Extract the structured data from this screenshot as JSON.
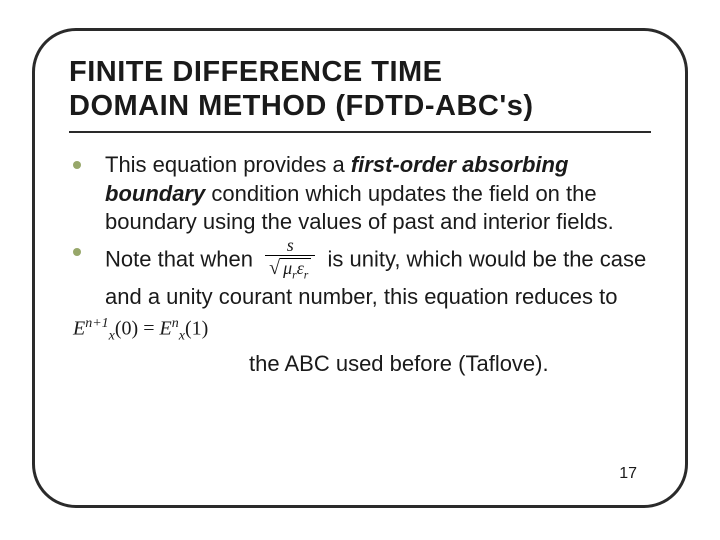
{
  "title_line1": "FINITE DIFFERENCE TIME",
  "title_line2": "DOMAIN METHOD (FDTD-ABC's)",
  "bullets": [
    {
      "pre": "This equation provides a ",
      "em": "first-order absorbing boundary",
      "post": " condition which updates the field on the boundary using the values of past and interior fields."
    },
    {
      "pre": "Note that when ",
      "mid": " is unity, which would be the case and a unity courant number, this equation reduces to"
    }
  ],
  "fraction": {
    "num": "s",
    "mu": "μ",
    "eps": "ε",
    "sub": "r"
  },
  "equation": {
    "E": "E",
    "x": "x",
    "np1": "n+1",
    "zero": "(0) = ",
    "n": "n",
    "one": "(1)"
  },
  "tail": "the ABC used before (Taflove).",
  "page": "17",
  "colors": {
    "bullet": "#97a76a",
    "border": "#2a2a2a",
    "text": "#1a1a1a"
  }
}
